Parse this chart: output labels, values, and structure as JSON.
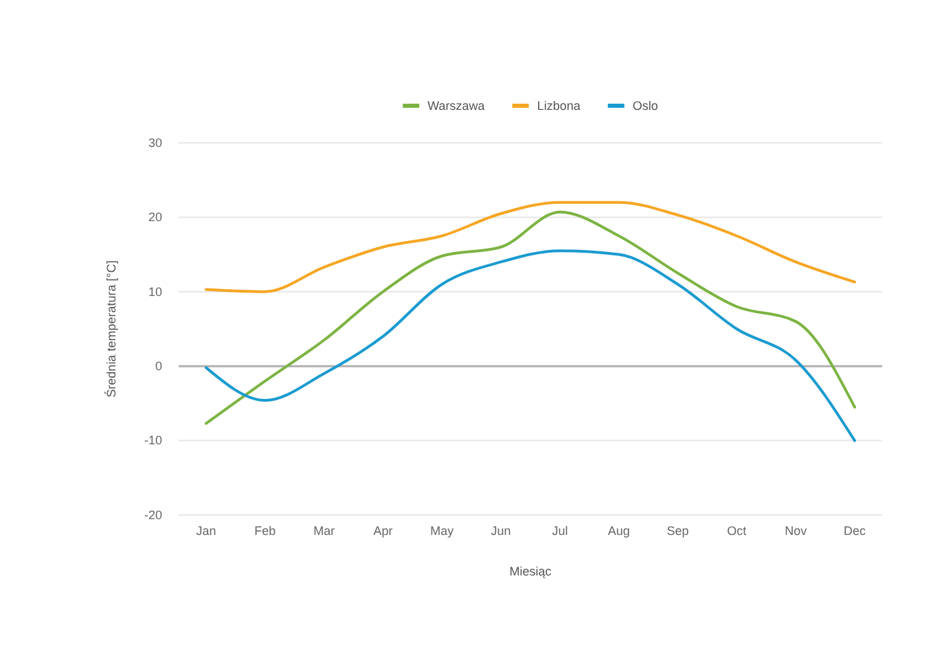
{
  "chart_data": {
    "type": "line",
    "xlabel": "Miesiąc",
    "ylabel": "Średnia temperatura [°C]",
    "categories": [
      "Jan",
      "Feb",
      "Mar",
      "Apr",
      "May",
      "Jun",
      "Jul",
      "Aug",
      "Sep",
      "Oct",
      "Nov",
      "Dec"
    ],
    "series": [
      {
        "name": "Warszawa",
        "color": "#7cb342",
        "values": [
          -7.7,
          -2,
          3.5,
          10,
          14.8,
          16,
          20.7,
          17.5,
          12.5,
          8,
          6,
          -5.5
        ]
      },
      {
        "name": "Lizbona",
        "color": "#f5a623",
        "values": [
          10.3,
          10,
          13.3,
          16,
          17.5,
          20.5,
          22,
          22,
          20.3,
          17.5,
          14,
          11.3
        ]
      },
      {
        "name": "Oslo",
        "color": "#1a9bd0",
        "values": [
          -0.2,
          -4.6,
          -1,
          4,
          11,
          14,
          15.5,
          15,
          11,
          5,
          0.8,
          -10
        ]
      }
    ],
    "ylim": [
      -20,
      30
    ],
    "yticks": [
      -20,
      -10,
      0,
      10,
      20,
      30
    ],
    "grid": "y",
    "legend": "top",
    "ref_lines": [
      {
        "axis": "y",
        "value": 0,
        "color": "#b0b0b0"
      }
    ]
  }
}
